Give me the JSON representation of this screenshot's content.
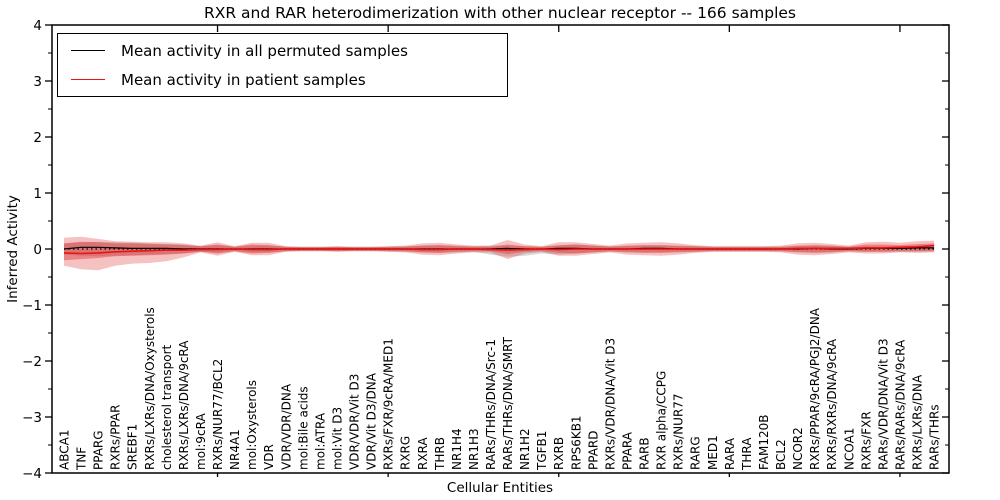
{
  "figure": {
    "title": "RXR and RAR heterodimerization with other nuclear receptor -- 166 samples",
    "xlabel": "Cellular Entities",
    "ylabel": "Inferred Activity",
    "legend": [
      {
        "label": "Mean activity in all permuted samples",
        "color": "#000000"
      },
      {
        "label": "Mean activity in patient samples",
        "color": "#ee1111"
      }
    ]
  },
  "chart_data": {
    "type": "line",
    "title": "RXR and RAR heterodimerization with other nuclear receptor -- 166 samples",
    "xlabel": "Cellular Entities",
    "ylabel": "Inferred Activity",
    "ylim": [
      -4,
      4
    ],
    "yticks": [
      -4,
      -3,
      -2,
      -1,
      0,
      1,
      2,
      3,
      4
    ],
    "yticklabels": [
      "−4",
      "−3",
      "−2",
      "−1",
      "0",
      "1",
      "2",
      "3",
      "4"
    ],
    "grid": false,
    "legend_position": "upper left",
    "zero_line": {
      "style": "dotted",
      "color": "#000000",
      "y": 0
    },
    "categories": [
      "ABCA1",
      "TNF",
      "PPARG",
      "RXRs/PPAR",
      "SREBF1",
      "RXRs/LXRs/DNA/Oxysterols",
      "cholesterol transport",
      "RXRs/LXRs/DNA/9cRA",
      "mol:9cRA",
      "RXRs/NUR77/BCL2",
      "NR4A1",
      "mol:Oxysterols",
      "VDR",
      "VDR/VDR/DNA",
      "mol:Bile acids",
      "mol:ATRA",
      "mol:Vit D3",
      "VDR/VDR/Vit D3",
      "VDR/Vit D3/DNA",
      "RXRs/FXR/9cRA/MED1",
      "RXRG",
      "RXRA",
      "THRB",
      "NR1H4",
      "NR1H3",
      "RARs/THRs/DNA/Src-1",
      "RARs/THRs/DNA/SMRT",
      "NR1H2",
      "TGFB1",
      "RXRB",
      "RPS6KB1",
      "PPARD",
      "RXRs/VDR/DNA/Vit D3",
      "PPARA",
      "RARB",
      "RXR alpha/CCPG",
      "RXRs/NUR77",
      "RARG",
      "MED1",
      "RARA",
      "THRA",
      "FAM120B",
      "BCL2",
      "NCOR2",
      "RXRs/PPAR/9cRA/PGJ2/DNA",
      "RXRs/RXRs/DNA/9cRA",
      "NCOA1",
      "RXRs/FXR",
      "RARs/VDR/DNA/Vit D3",
      "RARs/RARs/DNA/9cRA",
      "RXRs/LXRs/DNA",
      "RARs/THRs"
    ],
    "series": [
      {
        "name": "Mean activity in all permuted samples",
        "color": "#000000",
        "values": [
          0.0,
          0.03,
          0.03,
          0.02,
          0.01,
          0.01,
          0.01,
          0.0,
          0.0,
          0.0,
          0.0,
          0.0,
          0.0,
          0.0,
          0.0,
          0.0,
          0.0,
          0.0,
          0.0,
          0.0,
          0.0,
          0.0,
          0.0,
          0.0,
          0.0,
          0.0,
          0.01,
          0.0,
          0.0,
          0.01,
          0.01,
          0.0,
          0.0,
          0.0,
          0.01,
          0.01,
          0.0,
          0.0,
          0.0,
          0.0,
          0.0,
          0.0,
          0.0,
          0.0,
          0.01,
          0.0,
          0.0,
          0.01,
          0.01,
          0.01,
          0.02,
          0.02
        ]
      },
      {
        "name": "Mean activity in patient samples",
        "color": "#ee1111",
        "values": [
          -0.07,
          -0.08,
          -0.07,
          -0.05,
          -0.04,
          -0.03,
          -0.02,
          -0.02,
          -0.01,
          -0.01,
          0.0,
          -0.01,
          -0.01,
          0.0,
          0.0,
          0.0,
          0.0,
          0.0,
          0.0,
          0.0,
          0.0,
          -0.01,
          -0.01,
          0.0,
          0.0,
          -0.01,
          -0.02,
          -0.01,
          0.0,
          -0.01,
          0.0,
          0.0,
          0.0,
          0.0,
          0.0,
          0.0,
          0.0,
          0.0,
          0.0,
          0.0,
          0.0,
          0.0,
          0.0,
          0.01,
          0.01,
          0.01,
          0.01,
          0.02,
          0.02,
          0.03,
          0.04,
          0.06
        ]
      }
    ],
    "bands": [
      {
        "name": "permuted-samples-std-band",
        "color": "#999999",
        "opacity": 0.4,
        "hi": [
          0.1,
          0.12,
          0.13,
          0.12,
          0.11,
          0.1,
          0.09,
          0.08,
          0.05,
          0.07,
          0.04,
          0.06,
          0.06,
          0.04,
          0.04,
          0.04,
          0.04,
          0.04,
          0.04,
          0.04,
          0.05,
          0.06,
          0.07,
          0.06,
          0.05,
          0.06,
          0.06,
          0.05,
          0.04,
          0.06,
          0.08,
          0.06,
          0.05,
          0.05,
          0.06,
          0.06,
          0.05,
          0.05,
          0.04,
          0.04,
          0.04,
          0.04,
          0.04,
          0.05,
          0.06,
          0.05,
          0.04,
          0.05,
          0.05,
          0.05,
          0.05,
          0.05
        ],
        "lo": [
          -0.1,
          -0.12,
          -0.13,
          -0.12,
          -0.11,
          -0.1,
          -0.09,
          -0.08,
          -0.05,
          -0.07,
          -0.04,
          -0.06,
          -0.06,
          -0.04,
          -0.04,
          -0.04,
          -0.04,
          -0.04,
          -0.04,
          -0.04,
          -0.05,
          -0.06,
          -0.07,
          -0.06,
          -0.05,
          -0.1,
          -0.14,
          -0.12,
          -0.08,
          -0.1,
          -0.08,
          -0.06,
          -0.05,
          -0.05,
          -0.06,
          -0.06,
          -0.05,
          -0.05,
          -0.04,
          -0.04,
          -0.04,
          -0.04,
          -0.04,
          -0.05,
          -0.06,
          -0.05,
          -0.04,
          -0.05,
          -0.05,
          -0.05,
          -0.05,
          -0.05
        ]
      },
      {
        "name": "patient-samples-outer-band",
        "color": "#dd3333",
        "opacity": 0.3,
        "hi": [
          0.2,
          0.22,
          0.18,
          0.14,
          0.13,
          0.12,
          0.12,
          0.1,
          0.06,
          0.12,
          0.05,
          0.11,
          0.11,
          0.05,
          0.04,
          0.04,
          0.05,
          0.04,
          0.04,
          0.05,
          0.06,
          0.1,
          0.11,
          0.08,
          0.06,
          0.06,
          0.16,
          0.08,
          0.05,
          0.12,
          0.12,
          0.09,
          0.06,
          0.1,
          0.11,
          0.12,
          0.1,
          0.07,
          0.05,
          0.05,
          0.05,
          0.05,
          0.06,
          0.1,
          0.11,
          0.09,
          0.06,
          0.12,
          0.13,
          0.11,
          0.14,
          0.15
        ],
        "lo": [
          -0.3,
          -0.36,
          -0.38,
          -0.3,
          -0.26,
          -0.25,
          -0.22,
          -0.15,
          -0.06,
          -0.12,
          -0.05,
          -0.11,
          -0.11,
          -0.05,
          -0.04,
          -0.04,
          -0.05,
          -0.04,
          -0.04,
          -0.05,
          -0.06,
          -0.1,
          -0.11,
          -0.08,
          -0.06,
          -0.06,
          -0.18,
          -0.08,
          -0.05,
          -0.12,
          -0.12,
          -0.09,
          -0.06,
          -0.1,
          -0.11,
          -0.12,
          -0.1,
          -0.07,
          -0.05,
          -0.05,
          -0.05,
          -0.05,
          -0.06,
          -0.1,
          -0.11,
          -0.09,
          -0.06,
          -0.08,
          -0.08,
          -0.06,
          -0.07,
          -0.06
        ]
      },
      {
        "name": "patient-samples-inner-band",
        "color": "#dd3333",
        "opacity": 0.42,
        "hi": [
          0.1,
          0.13,
          0.12,
          0.1,
          0.1,
          0.09,
          0.08,
          0.07,
          0.05,
          0.08,
          0.04,
          0.08,
          0.07,
          0.04,
          0.03,
          0.03,
          0.04,
          0.03,
          0.03,
          0.04,
          0.04,
          0.06,
          0.07,
          0.05,
          0.04,
          0.04,
          0.08,
          0.05,
          0.04,
          0.07,
          0.08,
          0.06,
          0.04,
          0.06,
          0.07,
          0.07,
          0.06,
          0.05,
          0.04,
          0.04,
          0.04,
          0.04,
          0.04,
          0.06,
          0.07,
          0.06,
          0.04,
          0.08,
          0.08,
          0.07,
          0.09,
          0.1
        ],
        "lo": [
          -0.2,
          -0.18,
          -0.16,
          -0.13,
          -0.12,
          -0.11,
          -0.1,
          -0.08,
          -0.05,
          -0.08,
          -0.04,
          -0.08,
          -0.07,
          -0.04,
          -0.03,
          -0.03,
          -0.04,
          -0.03,
          -0.03,
          -0.04,
          -0.04,
          -0.06,
          -0.07,
          -0.05,
          -0.04,
          -0.04,
          -0.09,
          -0.05,
          -0.04,
          -0.07,
          -0.08,
          -0.06,
          -0.04,
          -0.06,
          -0.07,
          -0.07,
          -0.06,
          -0.05,
          -0.04,
          -0.04,
          -0.04,
          -0.04,
          -0.04,
          -0.06,
          -0.07,
          -0.06,
          -0.04,
          -0.05,
          -0.05,
          -0.04,
          -0.04,
          -0.03
        ]
      }
    ]
  }
}
